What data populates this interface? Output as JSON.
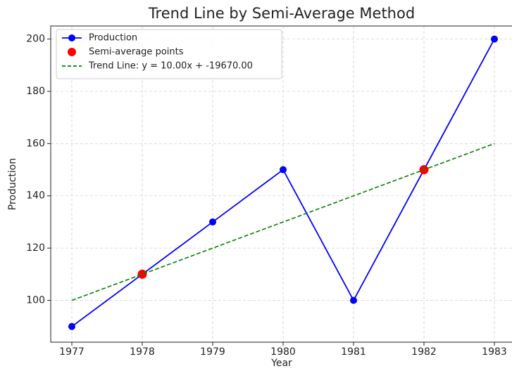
{
  "chart_data": {
    "type": "line",
    "title": "Trend Line by Semi-Average Method",
    "xlabel": "Year",
    "ylabel": "Production",
    "x": [
      1977,
      1978,
      1979,
      1980,
      1981,
      1982,
      1983
    ],
    "series": [
      {
        "name": "Production",
        "color": "#0000ff",
        "style": "line-marker",
        "values": [
          90,
          110,
          130,
          150,
          100,
          150,
          200
        ]
      },
      {
        "name": "Semi-average points",
        "color": "#ff0000",
        "style": "scatter",
        "x": [
          1978,
          1982
        ],
        "values": [
          110,
          150
        ]
      },
      {
        "name": "Trend Line: y = 10.00x + -19670.00",
        "color": "#008000",
        "style": "dashed",
        "values": [
          100,
          110,
          120,
          130,
          140,
          150,
          160
        ]
      }
    ],
    "xlim": [
      1976.7,
      1983.25
    ],
    "xticks": [
      1977,
      1978,
      1979,
      1980,
      1981,
      1982,
      1983
    ],
    "ylim": [
      84,
      205
    ],
    "yticks": [
      100,
      120,
      140,
      160,
      180,
      200
    ],
    "grid": true,
    "legend": "upper left"
  }
}
